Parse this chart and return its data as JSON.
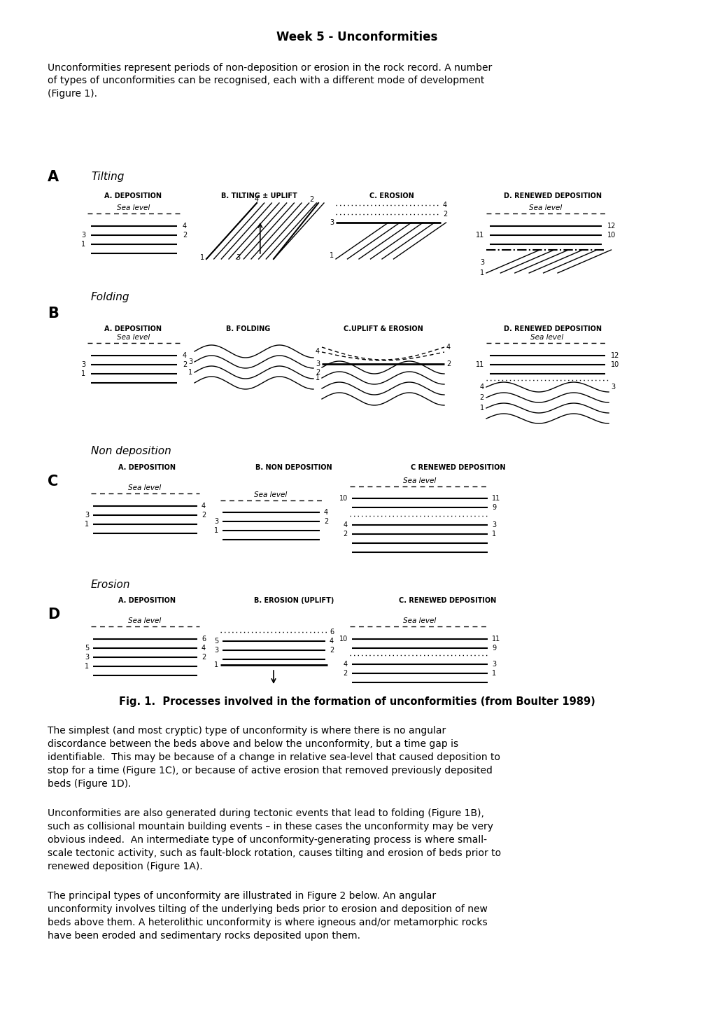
{
  "title": "Week 5 - Unconformities",
  "bg_color": "#ffffff",
  "text_color": "#000000",
  "intro_text": "Unconformities represent periods of non-deposition or erosion in the rock record. A number\nof types of unconformities can be recognised, each with a different mode of development\n(Figure 1).",
  "fig_caption": "Fig. 1.  Processes involved in the formation of unconformities (from Boulter 1989)",
  "body_text_1": "The simplest (and most cryptic) type of unconformity is where there is no angular\ndiscordance between the beds above and below the unconformity, but a time gap is\nidentifiable.  This may be because of a change in relative sea-level that caused deposition to\nstop for a time (Figure 1C), or because of active erosion that removed previously deposited\nbeds (Figure 1D).",
  "body_text_2": "Unconformities are also generated during tectonic events that lead to folding (Figure 1B),\nsuch as collisional mountain building events – in these cases the unconformity may be very\nobvious indeed.  An intermediate type of unconformity-generating process is where small-\nscale tectonic activity, such as fault-block rotation, causes tilting and erosion of beds prior to\nrenewed deposition (Figure 1A).",
  "body_text_3": "The principal types of unconformity are illustrated in Figure 2 below. An angular\nunconformity involves tilting of the underlying beds prior to erosion and deposition of new\nbeds above them. A heterolithic unconformity is where igneous and/or metamorphic rocks\nhave been eroded and sedimentary rocks deposited upon them."
}
